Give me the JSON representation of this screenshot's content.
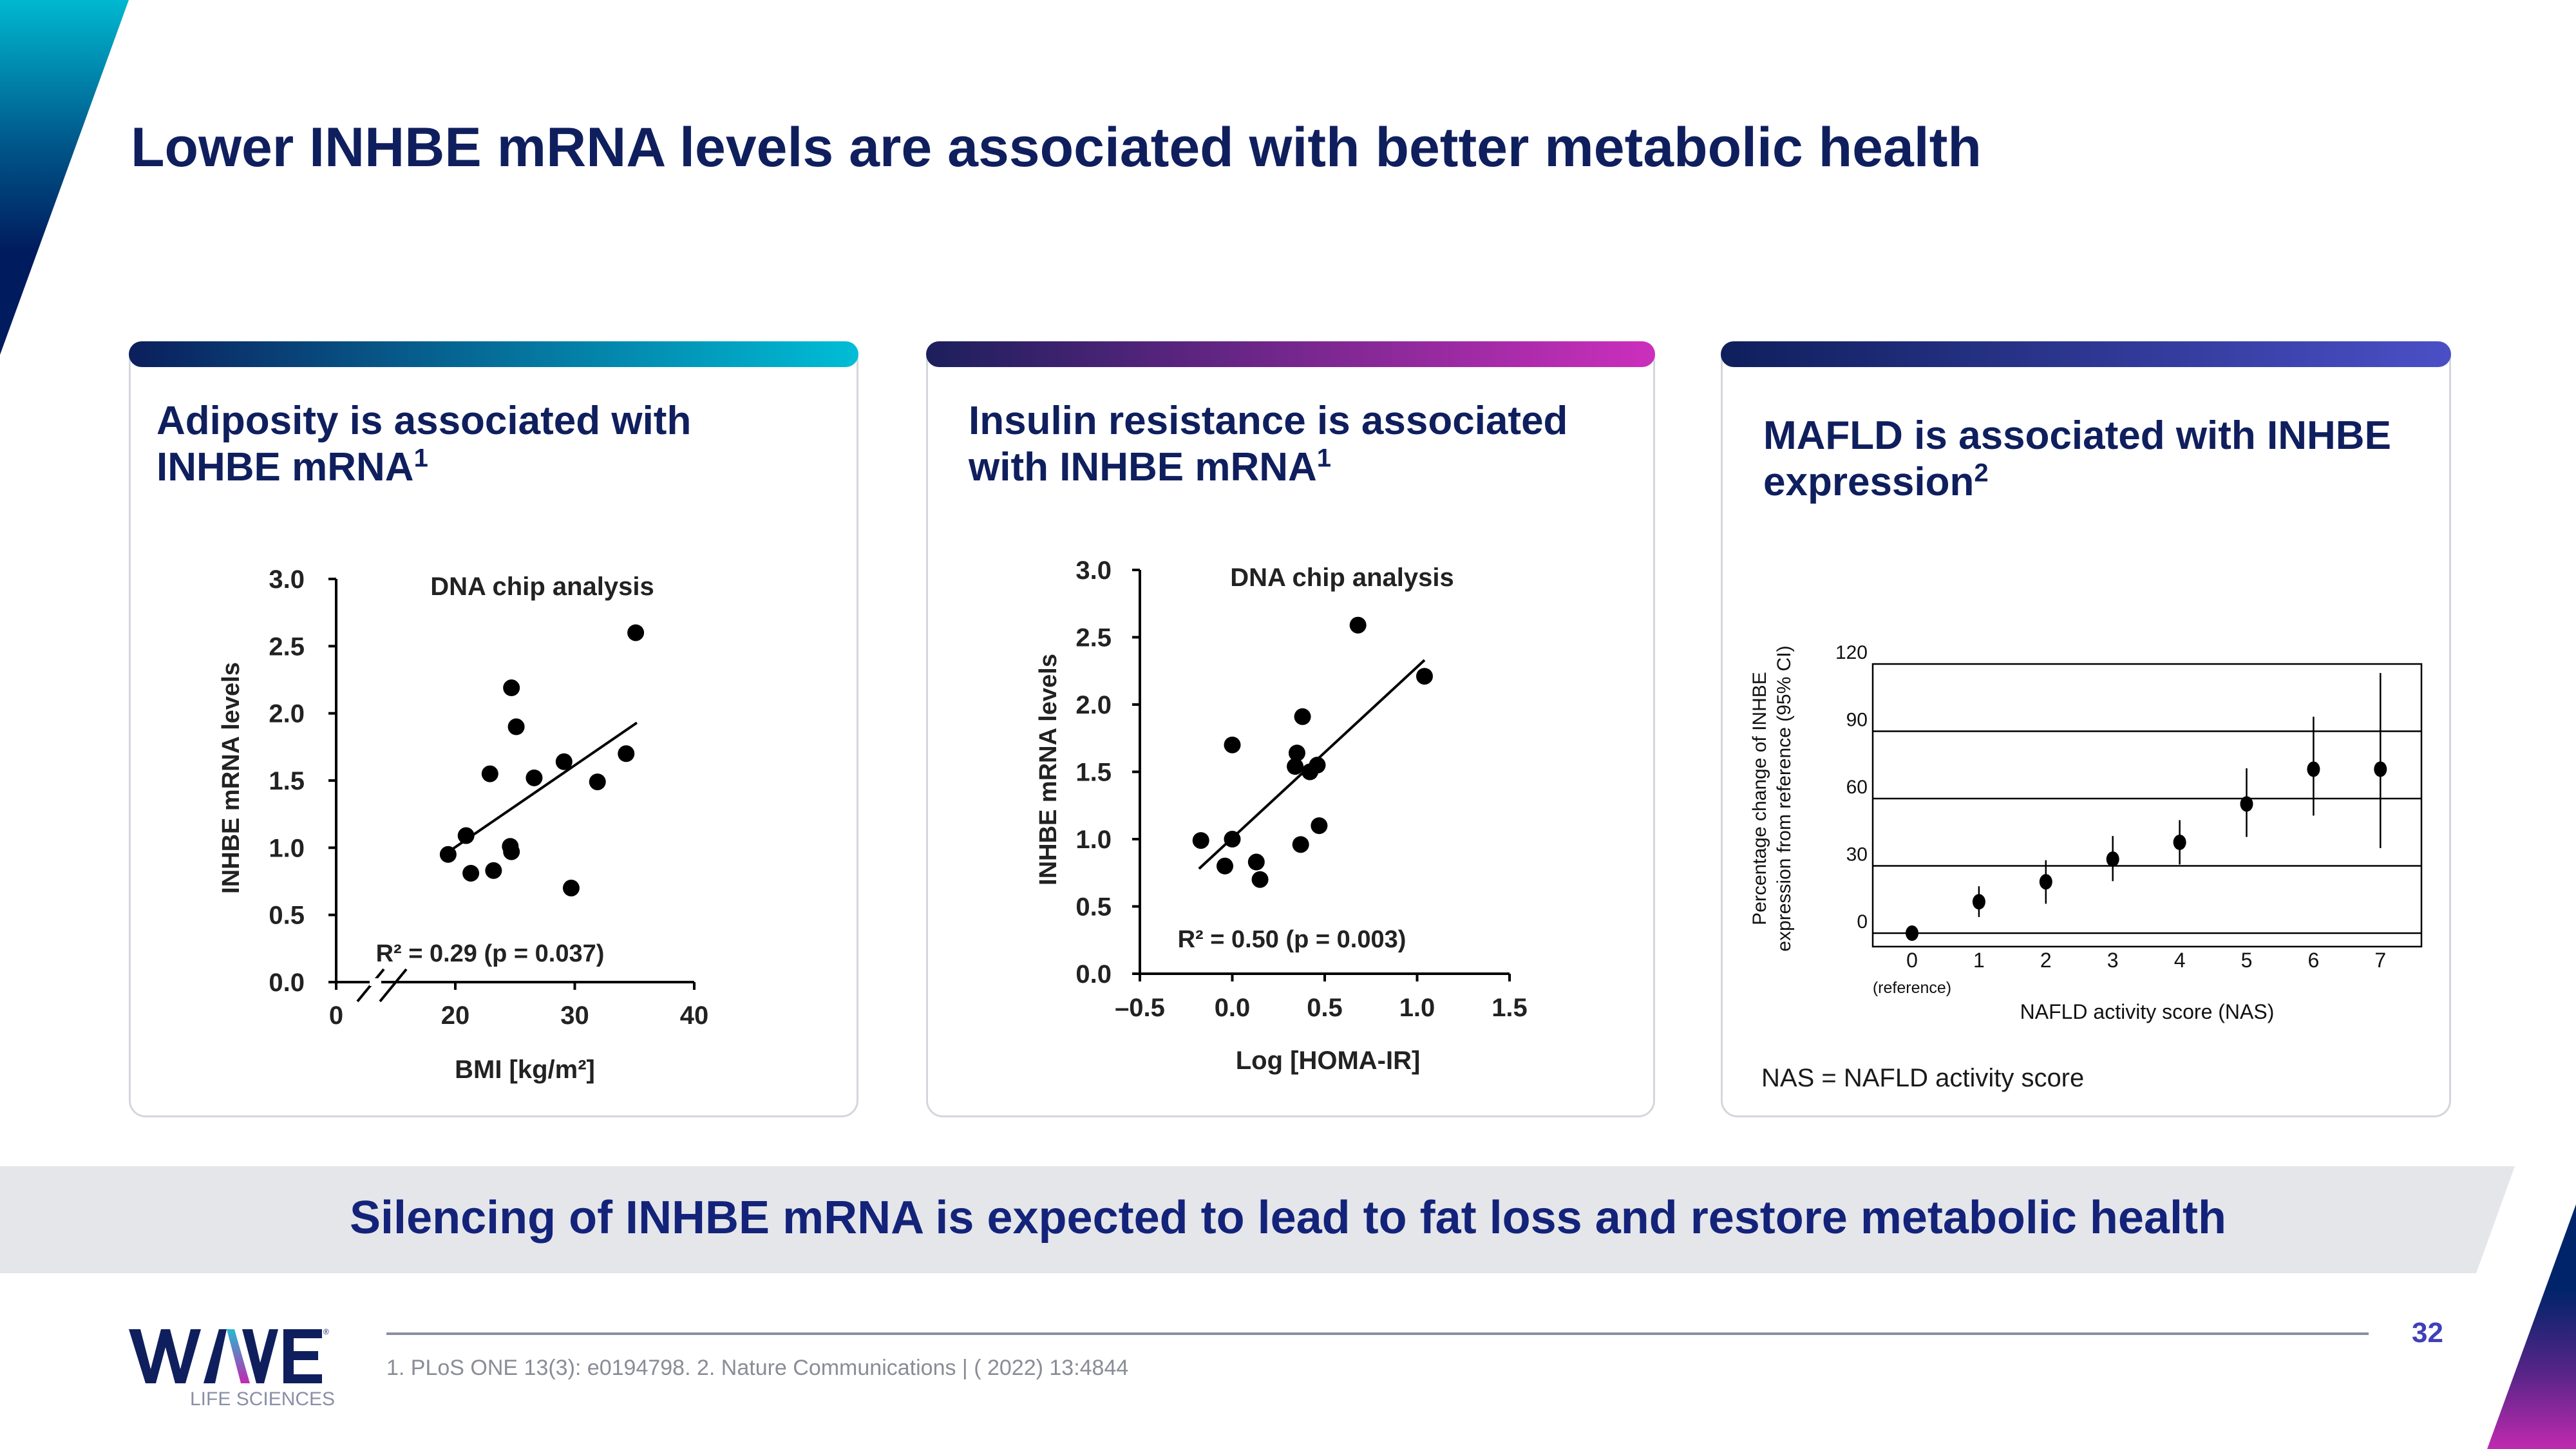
{
  "title": "Lower INHBE mRNA levels are associated with better metabolic health",
  "cards": [
    {
      "heading_line1": "Adiposity is associated with",
      "heading_line2": "INHBE mRNA",
      "sup": "1"
    },
    {
      "heading_line1": "Insulin resistance is associated",
      "heading_line2": "with INHBE mRNA",
      "sup": "1"
    },
    {
      "heading_line1": "MAFLD is associated with INHBE",
      "heading_line2": "expression",
      "sup": "2",
      "note": "NAS = NAFLD activity score"
    }
  ],
  "banner": "Silencing of INHBE mRNA is expected to lead to fat loss and restore metabolic health",
  "footer": {
    "references": "1. PLoS ONE 13(3): e0194798. 2. Nature Communications | ( 2022) 13:4844",
    "page_number": "32",
    "logo_text": "WAVE",
    "logo_subtext": "LIFE SCIENCES"
  },
  "colors": {
    "navy": "#0f1f5e",
    "cyan": "#00bdd6",
    "magenta": "#cc2fbd",
    "indigo": "#4b4fc6",
    "page_number": "#4040b8"
  },
  "chart_data": [
    {
      "type": "scatter",
      "title": "DNA chip analysis",
      "xlabel": "BMI [kg/m²]",
      "ylabel": "INHBE mRNA levels",
      "annotation": "R² = 0.29 (p = 0.037)",
      "xlim": [
        0,
        40
      ],
      "ylim": [
        0,
        3.0
      ],
      "x_axis_break": true,
      "xticks": [
        "0",
        "20",
        "30",
        "40"
      ],
      "yticks": [
        "0.0",
        "0.5",
        "1.0",
        "1.5",
        "2.0",
        "2.5",
        "3.0"
      ],
      "points": [
        [
          35.1,
          2.6
        ],
        [
          24.7,
          2.19
        ],
        [
          25.1,
          1.9
        ],
        [
          22.9,
          1.55
        ],
        [
          26.6,
          1.52
        ],
        [
          29.1,
          1.64
        ],
        [
          31.9,
          1.49
        ],
        [
          34.3,
          1.7
        ],
        [
          20.9,
          1.09
        ],
        [
          19.4,
          0.95
        ],
        [
          21.3,
          0.81
        ],
        [
          23.2,
          0.83
        ],
        [
          24.6,
          1.01
        ],
        [
          24.7,
          0.97
        ],
        [
          29.7,
          0.7
        ]
      ],
      "trend_line": [
        [
          19.6,
          0.98
        ],
        [
          35.2,
          1.93
        ]
      ]
    },
    {
      "type": "scatter",
      "title": "DNA chip analysis",
      "xlabel": "Log [HOMA-IR]",
      "ylabel": "INHBE mRNA levels",
      "annotation": "R² = 0.50 (p = 0.003)",
      "xlim": [
        -0.5,
        1.5
      ],
      "ylim": [
        0,
        3.0
      ],
      "xticks": [
        "-0.5",
        "0.0",
        "0.5",
        "1.0",
        "1.5"
      ],
      "yticks": [
        "0.0",
        "0.5",
        "1.0",
        "1.5",
        "2.0",
        "2.5",
        "3.0"
      ],
      "points": [
        [
          0.68,
          2.59
        ],
        [
          1.04,
          2.21
        ],
        [
          0.38,
          1.91
        ],
        [
          0.0,
          1.7
        ],
        [
          0.35,
          1.64
        ],
        [
          0.34,
          1.54
        ],
        [
          0.42,
          1.5
        ],
        [
          0.46,
          1.55
        ],
        [
          0.47,
          1.1
        ],
        [
          0.37,
          0.96
        ],
        [
          -0.17,
          0.99
        ],
        [
          0.0,
          1.0
        ],
        [
          -0.04,
          0.8
        ],
        [
          0.13,
          0.83
        ],
        [
          0.15,
          0.7
        ]
      ],
      "trend_line": [
        [
          -0.18,
          0.78
        ],
        [
          1.04,
          2.33
        ]
      ]
    },
    {
      "type": "scatter",
      "subtype": "point-with-error-bars",
      "xlabel": "NAFLD activity score (NAS)",
      "ylabel_line1": "Percentage change of INHBE",
      "ylabel_line2": "expression from reference (95% CI)",
      "xlim": [
        0,
        7
      ],
      "ylim": [
        -6,
        120
      ],
      "grid": "horizontal",
      "xticks": [
        "0",
        "1",
        "2",
        "3",
        "4",
        "5",
        "6",
        "7"
      ],
      "x0_sublabel": "(reference)",
      "yticks": [
        "0",
        "30",
        "60",
        "90",
        "120"
      ],
      "points": [
        {
          "x": 0,
          "y": 0,
          "lo": 0,
          "hi": 0
        },
        {
          "x": 1,
          "y": 14.0,
          "lo": 7.2,
          "hi": 20.9
        },
        {
          "x": 2,
          "y": 22.9,
          "lo": 13.1,
          "hi": 32.5
        },
        {
          "x": 3,
          "y": 33.0,
          "lo": 23.2,
          "hi": 43.3
        },
        {
          "x": 4,
          "y": 40.5,
          "lo": 30.6,
          "hi": 50.4
        },
        {
          "x": 5,
          "y": 57.6,
          "lo": 42.9,
          "hi": 73.5
        },
        {
          "x": 6,
          "y": 73.1,
          "lo": 52.4,
          "hi": 96.5
        },
        {
          "x": 7,
          "y": 73.1,
          "lo": 37.9,
          "hi": 116.0
        }
      ]
    }
  ]
}
